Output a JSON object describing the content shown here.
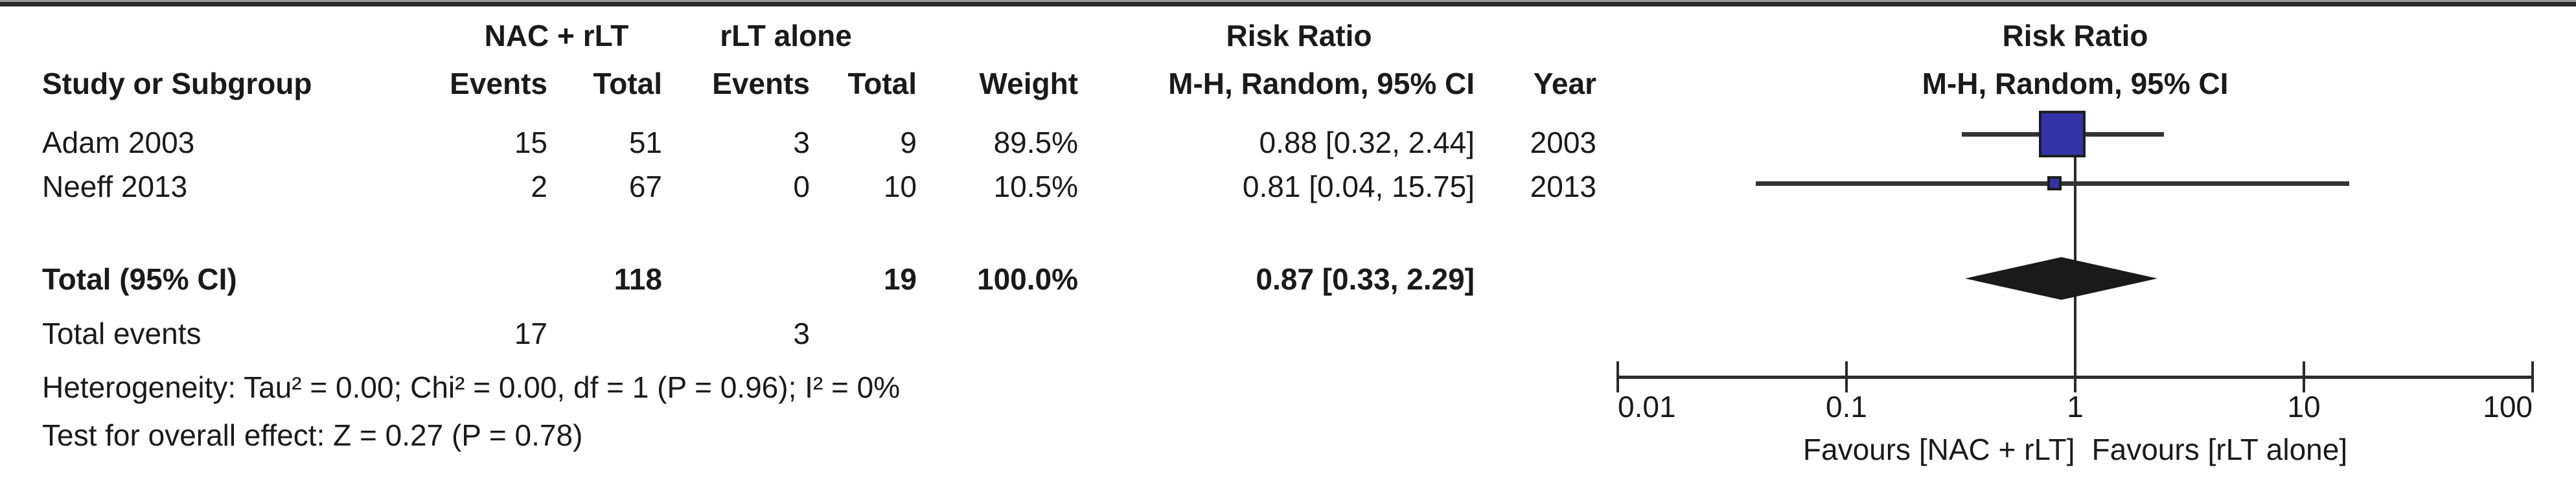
{
  "table": {
    "header": {
      "group1": "NAC + rLT",
      "group2": "rLT alone",
      "effect_title": "Risk Ratio",
      "study_col": "Study or Subgroup",
      "events_col": "Events",
      "total_col": "Total",
      "weight_col": "Weight",
      "effect_col": "M-H, Random, 95% CI",
      "year_col": "Year"
    },
    "rows": [
      {
        "study": "Adam 2003",
        "events1": "15",
        "total1": "51",
        "events2": "3",
        "total2": "9",
        "weight": "89.5%",
        "ci": "0.88 [0.32, 2.44]",
        "year": "2003"
      },
      {
        "study": "Neeff 2013",
        "events1": "2",
        "total1": "67",
        "events2": "0",
        "total2": "10",
        "weight": "10.5%",
        "ci": "0.81 [0.04, 15.75]",
        "year": "2013"
      }
    ],
    "total_row": {
      "label": "Total (95% CI)",
      "total1": "118",
      "total2": "19",
      "weight": "100.0%",
      "ci": "0.87 [0.33, 2.29]"
    },
    "total_events_row": {
      "label": "Total events",
      "events1": "17",
      "events2": "3"
    },
    "heterogeneity": "Heterogeneity: Tau² = 0.00; Chi² = 0.00, df = 1 (P = 0.96); I² = 0%",
    "overall_effect": "Test for overall effect: Z = 0.27 (P = 0.78)"
  },
  "plot": {
    "header_line1": "Risk Ratio",
    "header_line2": "M-H, Random, 95% CI",
    "favours_left": "Favours [NAC + rLT]",
    "favours_right": "Favours [rLT alone]"
  },
  "chart_data": {
    "type": "scatter",
    "subtype": "forest-plot",
    "title": "Risk Ratio, M-H, Random, 95% CI",
    "x_axis": {
      "scale": "log",
      "range": [
        0.01,
        100
      ],
      "ticks": [
        0.01,
        0.1,
        1,
        10,
        100
      ],
      "tick_labels": [
        "0.01",
        "0.1",
        "1",
        "10",
        "100"
      ],
      "label_left": "Favours [NAC + rLT]",
      "label_right": "Favours [rLT alone]"
    },
    "no_effect_value": 1,
    "studies": [
      {
        "name": "Adam 2003",
        "events_exp": 15,
        "total_exp": 51,
        "events_ctrl": 3,
        "total_ctrl": 9,
        "weight_pct": 89.5,
        "rr": 0.88,
        "ci_low": 0.32,
        "ci_high": 2.44,
        "year": 2003
      },
      {
        "name": "Neeff 2013",
        "events_exp": 2,
        "total_exp": 67,
        "events_ctrl": 0,
        "total_ctrl": 10,
        "weight_pct": 10.5,
        "rr": 0.81,
        "ci_low": 0.04,
        "ci_high": 15.75,
        "year": 2013
      }
    ],
    "overall": {
      "rr": 0.87,
      "ci_low": 0.33,
      "ci_high": 2.29,
      "weight_pct": 100.0,
      "total_exp": 118,
      "total_ctrl": 19,
      "events_exp": 17,
      "events_ctrl": 3
    },
    "heterogeneity": {
      "tau2": 0.0,
      "chi2": 0.0,
      "df": 1,
      "p": 0.96,
      "i2_pct": 0
    },
    "overall_test": {
      "z": 0.27,
      "p": 0.78
    },
    "marker_color": "#3434a8",
    "marker_border_color": "#1e1e1e",
    "line_color": "#333333",
    "diamond_color": "#1a1a1a"
  }
}
